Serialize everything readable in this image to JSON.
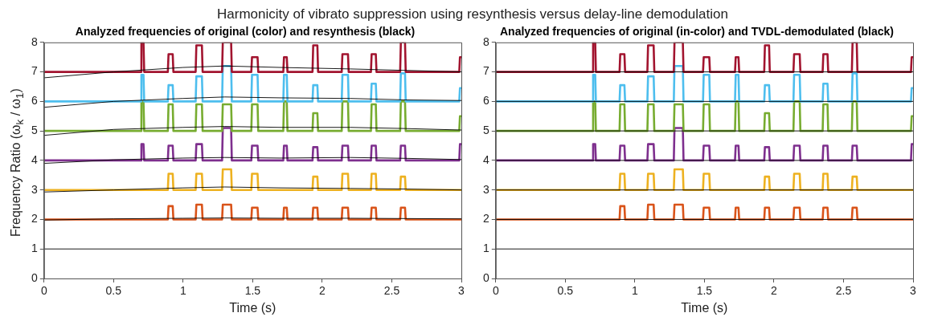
{
  "chart_data": [
    {
      "type": "line",
      "title": "Harmonicity of vibrato suppression using resynthesis versus delay-line demodulation",
      "subtitle": "Analyzed frequencies of original (color) and resynthesis (black)",
      "xlabel": "Time (s)",
      "ylabel": "Frequency Ratio (ω$_{k}$ / ω$_{1}$)",
      "xlim": [
        0,
        3
      ],
      "ylim": [
        0,
        8
      ],
      "xticks": [
        0,
        0.5,
        1,
        1.5,
        2,
        2.5,
        3
      ],
      "yticks": [
        0,
        1,
        2,
        3,
        4,
        5,
        6,
        7,
        8
      ],
      "grid": false,
      "legend": false,
      "x": [
        0,
        0.695,
        0.7,
        0.715,
        0.72,
        0.89,
        0.895,
        0.925,
        0.93,
        1.09,
        1.095,
        1.135,
        1.14,
        1.28,
        1.285,
        1.345,
        1.35,
        1.49,
        1.495,
        1.535,
        1.54,
        1.72,
        1.725,
        1.745,
        1.75,
        1.93,
        1.935,
        1.965,
        1.97,
        2.14,
        2.145,
        2.185,
        2.19,
        2.35,
        2.355,
        2.385,
        2.39,
        2.56,
        2.565,
        2.595,
        2.6,
        2.985,
        2.99,
        3
      ],
      "series": [
        {
          "color": "#d95319",
          "values": [
            2,
            2,
            2,
            2,
            2,
            2,
            2.45,
            2.45,
            2,
            2,
            2.5,
            2.5,
            2,
            2,
            2.5,
            2.5,
            2,
            2,
            2.4,
            2.4,
            2,
            2,
            2.4,
            2.4,
            2,
            2,
            2.4,
            2.4,
            2,
            2,
            2.4,
            2.4,
            2,
            2,
            2.4,
            2.4,
            2,
            2,
            2.4,
            2.4,
            2,
            2,
            2,
            2
          ]
        },
        {
          "color": "#edb120",
          "values": [
            3,
            3,
            3,
            3,
            3,
            3,
            3.55,
            3.55,
            3,
            3,
            3.55,
            3.55,
            3,
            3,
            3.7,
            3.7,
            3,
            3,
            3.55,
            3.55,
            3,
            3,
            3,
            3,
            3,
            3,
            3.45,
            3.45,
            3,
            3,
            3.55,
            3.55,
            3,
            3,
            3.55,
            3.55,
            3,
            3,
            3.45,
            3.45,
            3,
            3,
            3,
            3
          ]
        },
        {
          "color": "#7e2f8e",
          "values": [
            4,
            4,
            4.55,
            4.55,
            4,
            4,
            4.5,
            4.5,
            4,
            4,
            4.55,
            4.55,
            4,
            4,
            5.1,
            5.1,
            4,
            4,
            4.5,
            4.5,
            4,
            4,
            4.5,
            4.5,
            4,
            4,
            4.45,
            4.45,
            4,
            4,
            4.5,
            4.5,
            4,
            4,
            4.5,
            4.5,
            4,
            4,
            4.5,
            4.5,
            4,
            4,
            4.55,
            4.55
          ]
        },
        {
          "color": "#77ac30",
          "values": [
            5,
            5,
            6,
            6,
            5,
            5,
            5.9,
            5.9,
            5,
            5,
            5.9,
            5.9,
            5,
            5,
            5.9,
            5.9,
            5,
            5,
            5.9,
            5.9,
            5,
            5,
            6,
            6,
            5,
            5,
            5.6,
            5.6,
            5,
            5,
            6,
            6,
            5,
            5,
            5.9,
            5.9,
            5,
            5,
            6,
            6,
            5,
            5,
            5.5,
            5.5
          ]
        },
        {
          "color": "#4dbeee",
          "values": [
            6,
            6,
            6.9,
            6.9,
            6,
            6,
            6.55,
            6.55,
            6,
            6,
            6.85,
            6.85,
            6,
            6,
            7.2,
            7.2,
            6,
            6,
            6.9,
            6.9,
            6,
            6,
            6.9,
            6.9,
            6,
            6,
            6.55,
            6.55,
            6,
            6,
            6.9,
            6.9,
            6,
            6,
            6.6,
            6.6,
            6,
            6,
            6.95,
            6.95,
            6,
            6,
            6.45,
            6.45
          ]
        },
        {
          "color": "#a2142f",
          "values": [
            7,
            7,
            8,
            8,
            7,
            7,
            7.6,
            7.6,
            7,
            7,
            7.9,
            7.9,
            7,
            7,
            8,
            8,
            7,
            7,
            7.5,
            7.5,
            7,
            7,
            7.5,
            7.5,
            7,
            7,
            7.9,
            7.9,
            7,
            7,
            7.6,
            7.6,
            7,
            7,
            7.6,
            7.6,
            7,
            7,
            8,
            8,
            7,
            7,
            7.5,
            7.5
          ]
        },
        {
          "color": "#000000",
          "x": [
            0,
            3
          ],
          "values": [
            1,
            1
          ]
        },
        {
          "color": "#000000",
          "x": [
            0,
            0.5,
            1,
            1.3,
            1.7,
            2.2,
            2.6,
            3
          ],
          "values": [
            1.98,
            2.02,
            2.04,
            2.05,
            2.04,
            2.04,
            2.03,
            2.02
          ]
        },
        {
          "color": "#000000",
          "x": [
            0,
            0.5,
            1,
            1.3,
            1.7,
            2.2,
            2.6,
            3
          ],
          "values": [
            2.93,
            3,
            3.07,
            3.1,
            3.07,
            3.05,
            3.03,
            3
          ]
        },
        {
          "color": "#000000",
          "x": [
            0,
            0.5,
            1,
            1.3,
            1.7,
            2.2,
            2.6,
            3
          ],
          "values": [
            3.9,
            4.02,
            4.08,
            4.1,
            4.08,
            4.1,
            4.07,
            4.03
          ]
        },
        {
          "color": "#000000",
          "x": [
            0,
            0.5,
            1,
            1.3,
            1.7,
            2.2,
            2.6,
            3
          ],
          "values": [
            4.85,
            5.05,
            5.12,
            5.15,
            5.12,
            5.12,
            5.08,
            5.03
          ]
        },
        {
          "color": "#000000",
          "x": [
            0,
            0.5,
            1,
            1.3,
            1.7,
            2.2,
            2.6,
            3
          ],
          "values": [
            5.8,
            6,
            6.1,
            6.15,
            6.12,
            6.1,
            6.05,
            6.03
          ]
        },
        {
          "color": "#000000",
          "x": [
            0,
            0.5,
            1,
            1.3,
            1.7,
            2.2,
            2.6,
            3
          ],
          "values": [
            6.8,
            7,
            7.15,
            7.2,
            7.15,
            7.1,
            7.05,
            7
          ]
        }
      ]
    },
    {
      "type": "line",
      "subtitle": "Analyzed frequencies of original (in-color) and TVDL-demodulated (black)",
      "xlabel": "Time (s)",
      "xlim": [
        0,
        3
      ],
      "ylim": [
        0,
        8
      ],
      "xticks": [
        0,
        0.5,
        1,
        1.5,
        2,
        2.5,
        3
      ],
      "yticks": [
        0,
        1,
        2,
        3,
        4,
        5,
        6,
        7,
        8
      ],
      "grid": false,
      "legend": false,
      "x": [
        0,
        0.695,
        0.7,
        0.715,
        0.72,
        0.89,
        0.895,
        0.925,
        0.93,
        1.09,
        1.095,
        1.135,
        1.14,
        1.28,
        1.285,
        1.345,
        1.35,
        1.49,
        1.495,
        1.535,
        1.54,
        1.72,
        1.725,
        1.745,
        1.75,
        1.93,
        1.935,
        1.965,
        1.97,
        2.14,
        2.145,
        2.185,
        2.19,
        2.35,
        2.355,
        2.385,
        2.39,
        2.56,
        2.565,
        2.595,
        2.6,
        2.985,
        2.99,
        3
      ],
      "series": [
        {
          "color": "#d95319",
          "values": [
            2,
            2,
            2,
            2,
            2,
            2,
            2.45,
            2.45,
            2,
            2,
            2.5,
            2.5,
            2,
            2,
            2.5,
            2.5,
            2,
            2,
            2.4,
            2.4,
            2,
            2,
            2.4,
            2.4,
            2,
            2,
            2.4,
            2.4,
            2,
            2,
            2.4,
            2.4,
            2,
            2,
            2.4,
            2.4,
            2,
            2,
            2.4,
            2.4,
            2,
            2,
            2,
            2
          ]
        },
        {
          "color": "#edb120",
          "values": [
            3,
            3,
            3,
            3,
            3,
            3,
            3.55,
            3.55,
            3,
            3,
            3.55,
            3.55,
            3,
            3,
            3.7,
            3.7,
            3,
            3,
            3.55,
            3.55,
            3,
            3,
            3,
            3,
            3,
            3,
            3.45,
            3.45,
            3,
            3,
            3.55,
            3.55,
            3,
            3,
            3.55,
            3.55,
            3,
            3,
            3.45,
            3.45,
            3,
            3,
            3,
            3
          ]
        },
        {
          "color": "#7e2f8e",
          "values": [
            4,
            4,
            4.55,
            4.55,
            4,
            4,
            4.5,
            4.5,
            4,
            4,
            4.55,
            4.55,
            4,
            4,
            5.1,
            5.1,
            4,
            4,
            4.5,
            4.5,
            4,
            4,
            4.5,
            4.5,
            4,
            4,
            4.45,
            4.45,
            4,
            4,
            4.5,
            4.5,
            4,
            4,
            4.5,
            4.5,
            4,
            4,
            4.5,
            4.5,
            4,
            4,
            4.55,
            4.55
          ]
        },
        {
          "color": "#77ac30",
          "values": [
            5,
            5,
            6,
            6,
            5,
            5,
            5.9,
            5.9,
            5,
            5,
            5.9,
            5.9,
            5,
            5,
            5.9,
            5.9,
            5,
            5,
            5.9,
            5.9,
            5,
            5,
            6,
            6,
            5,
            5,
            5.6,
            5.6,
            5,
            5,
            6,
            6,
            5,
            5,
            5.9,
            5.9,
            5,
            5,
            6,
            6,
            5,
            5,
            5.5,
            5.5
          ]
        },
        {
          "color": "#4dbeee",
          "values": [
            6,
            6,
            6.9,
            6.9,
            6,
            6,
            6.55,
            6.55,
            6,
            6,
            6.85,
            6.85,
            6,
            6,
            7.2,
            7.2,
            6,
            6,
            6.9,
            6.9,
            6,
            6,
            6.9,
            6.9,
            6,
            6,
            6.55,
            6.55,
            6,
            6,
            6.9,
            6.9,
            6,
            6,
            6.6,
            6.6,
            6,
            6,
            6.95,
            6.95,
            6,
            6,
            6.45,
            6.45
          ]
        },
        {
          "color": "#a2142f",
          "values": [
            7,
            7,
            8,
            8,
            7,
            7,
            7.6,
            7.6,
            7,
            7,
            7.9,
            7.9,
            7,
            7,
            8,
            8,
            7,
            7,
            7.5,
            7.5,
            7,
            7,
            7.5,
            7.5,
            7,
            7,
            7.9,
            7.9,
            7,
            7,
            7.6,
            7.6,
            7,
            7,
            7.6,
            7.6,
            7,
            7,
            8,
            8,
            7,
            7,
            7.5,
            7.5
          ]
        },
        {
          "color": "#000000",
          "x": [
            0,
            3
          ],
          "values": [
            1,
            1
          ]
        },
        {
          "color": "#000000",
          "x": [
            0,
            3
          ],
          "values": [
            2,
            2
          ]
        },
        {
          "color": "#000000",
          "x": [
            0,
            3
          ],
          "values": [
            3,
            3
          ]
        },
        {
          "color": "#000000",
          "x": [
            0,
            3
          ],
          "values": [
            4,
            4
          ]
        },
        {
          "color": "#000000",
          "x": [
            0,
            3
          ],
          "values": [
            5,
            5
          ]
        },
        {
          "color": "#000000",
          "x": [
            0,
            3
          ],
          "values": [
            6,
            6
          ]
        },
        {
          "color": "#000000",
          "x": [
            0,
            3
          ],
          "values": [
            7,
            7
          ]
        }
      ]
    }
  ]
}
